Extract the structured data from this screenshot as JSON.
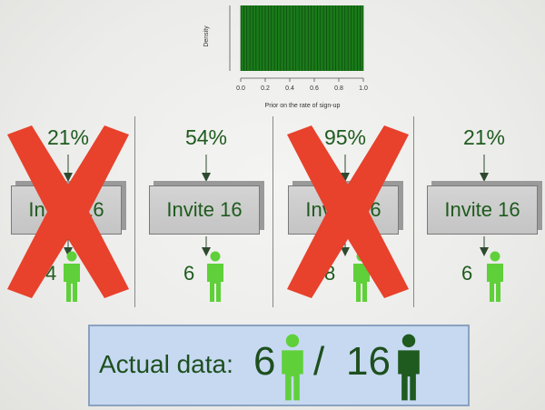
{
  "prior_chart": {
    "chart_data": {
      "type": "bar",
      "ylabel": "Density",
      "xlabel": "Prior on the rate of sign-up",
      "x_ticks": [
        "0.0",
        "0.2",
        "0.4",
        "0.6",
        "0.8",
        "1.0"
      ],
      "xlim": [
        0,
        1
      ],
      "bars": 40,
      "color": "#1a7a1a"
    }
  },
  "simulations": [
    {
      "rate": "21%",
      "label": "Invite 16",
      "result": "4",
      "rejected": true
    },
    {
      "rate": "54%",
      "label": "Invite 16",
      "result": "6",
      "rejected": false
    },
    {
      "rate": "95%",
      "label": "Invite 16",
      "result": "8",
      "rejected": true
    },
    {
      "rate": "21%",
      "label": "Invite 16",
      "result": "6",
      "rejected": false
    }
  ],
  "actual": {
    "label": "Actual data:",
    "signed_up": "6",
    "slash": "/",
    "total": "16"
  },
  "colors": {
    "text_green": "#1e5b1e",
    "person_light": "#5fd03a",
    "person_dark": "#1f5a1f",
    "x_mark": "#e8412c"
  }
}
